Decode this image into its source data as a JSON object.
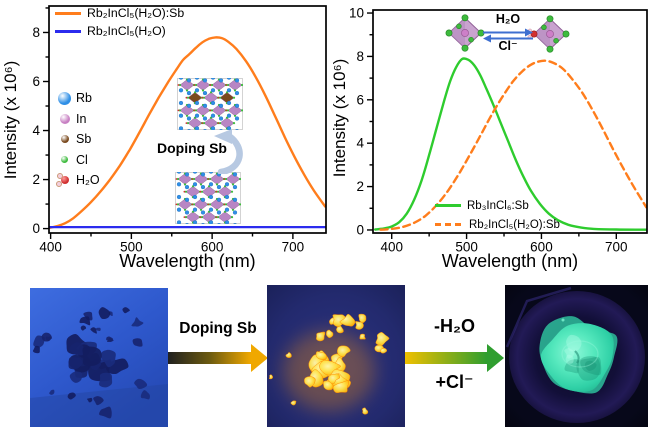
{
  "chart_data": [
    {
      "type": "line",
      "panel": "left",
      "title": "",
      "xlabel": "Wavelength (nm)",
      "ylabel": "Intensity (x 10⁶)",
      "xlim": [
        398,
        741
      ],
      "ylim": [
        -0.18,
        9.08
      ],
      "xticks": [
        400,
        500,
        600,
        700
      ],
      "xticks_minor": [
        450,
        550,
        650
      ],
      "yticks": [
        0,
        2,
        4,
        6,
        8
      ],
      "yticks_minor": [
        1,
        3,
        5,
        7,
        9
      ],
      "grid": false,
      "legend_position": "top-left",
      "series": [
        {
          "name": "Rb₂InCl₅(H₂O):Sb",
          "color": "#ff7d1c",
          "line": "solid",
          "width": 2.4,
          "x": [
            398,
            408,
            418,
            428,
            438,
            450,
            462,
            474,
            486,
            498,
            510,
            522,
            534,
            546,
            556,
            564,
            572,
            580,
            588,
            596,
            604,
            612,
            620,
            630,
            642,
            654,
            666,
            678,
            690,
            702,
            714,
            726,
            740
          ],
          "y": [
            0.03,
            0.1,
            0.22,
            0.42,
            0.7,
            1.08,
            1.52,
            2.02,
            2.58,
            3.22,
            3.92,
            4.65,
            5.35,
            6.0,
            6.5,
            6.88,
            7.12,
            7.38,
            7.6,
            7.74,
            7.8,
            7.77,
            7.62,
            7.33,
            6.83,
            6.18,
            5.42,
            4.58,
            3.73,
            2.93,
            2.2,
            1.55,
            0.9
          ]
        },
        {
          "name": "Rb₂InCl₅(H₂O)",
          "color": "#2b2bee",
          "line": "solid",
          "width": 2.2,
          "x": [
            398,
            741
          ],
          "y": [
            0.06,
            0.06
          ]
        }
      ],
      "atom_legend": [
        {
          "label": "Rb",
          "color": "#2f8fe6"
        },
        {
          "label": "In",
          "color": "#c77fc2"
        },
        {
          "label": "Sb",
          "color": "#7a4a1e"
        },
        {
          "label": "Cl",
          "color": "#3dbb3d"
        },
        {
          "label": "H₂O",
          "color": "#d03030"
        }
      ],
      "inset_text": "Doping Sb"
    },
    {
      "type": "line",
      "panel": "right",
      "title": "",
      "xlabel": "Wavelength (nm)",
      "ylabel": "Intensity (x 10⁶)",
      "xlim": [
        375,
        741
      ],
      "ylim": [
        -0.14,
        10.14
      ],
      "xticks": [
        400,
        500,
        600,
        700
      ],
      "xticks_minor": [
        450,
        550,
        650
      ],
      "yticks": [
        0,
        2,
        4,
        6,
        8,
        10
      ],
      "yticks_minor": [
        1,
        3,
        5,
        7,
        9
      ],
      "grid": false,
      "legend_position": "bottom-center",
      "series": [
        {
          "name": "Rb₃InCl₆:Sb",
          "color": "#2ecc2e",
          "line": "solid",
          "width": 2.4,
          "x": [
            378,
            390,
            400,
            410,
            420,
            430,
            440,
            450,
            460,
            470,
            478,
            486,
            494,
            502,
            510,
            518,
            526,
            536,
            546,
            556,
            566,
            576,
            586,
            598,
            610,
            622,
            636,
            652,
            670,
            700,
            740
          ],
          "y": [
            0.02,
            0.07,
            0.16,
            0.36,
            0.75,
            1.4,
            2.3,
            3.45,
            4.7,
            5.95,
            6.85,
            7.5,
            7.88,
            7.85,
            7.6,
            7.15,
            6.55,
            5.75,
            4.9,
            4.05,
            3.2,
            2.45,
            1.8,
            1.2,
            0.75,
            0.45,
            0.24,
            0.12,
            0.05,
            0.02,
            0.01
          ]
        },
        {
          "name": "Rb₂InCl₅(H₂O):Sb",
          "color": "#ff7d1c",
          "line": "dashed",
          "width": 2.4,
          "x": [
            385,
            400,
            415,
            430,
            445,
            460,
            475,
            490,
            505,
            520,
            535,
            550,
            562,
            574,
            586,
            596,
            606,
            616,
            628,
            640,
            654,
            668,
            682,
            696,
            710,
            724,
            740
          ],
          "y": [
            0.01,
            0.05,
            0.14,
            0.33,
            0.65,
            1.15,
            1.8,
            2.6,
            3.5,
            4.45,
            5.4,
            6.25,
            6.85,
            7.3,
            7.62,
            7.76,
            7.8,
            7.7,
            7.45,
            7.0,
            6.35,
            5.55,
            4.65,
            3.7,
            2.8,
            1.95,
            1.05
          ]
        }
      ],
      "inset_reaction": {
        "forward": "H₂O",
        "reverse": "Cl⁻"
      }
    }
  ],
  "bottom_row": {
    "arrow1_label": "Doping Sb",
    "arrow2_label_top": "-H₂O",
    "arrow2_label_bottom": "+Cl⁻"
  },
  "colors": {
    "axis": "#000000",
    "inset_octahedron_fill": "#c9a3cf",
    "inset_octahedron_edge": "#8f5f96",
    "inset_in_atom": "#cd7fc8",
    "inset_cl_atom": "#3dbb3d",
    "inset_h2o_atom": "#d23030",
    "inset_arrow_blue": "#3e6fd0",
    "doping_arrow_steel": "#b7c9e2",
    "crystal_pink": "#b886c4",
    "crystal_brown": "#7a4a1e",
    "crystal_blue": "#2f8fe6",
    "crystal_green": "#3dbb3d",
    "crystal_red": "#d03030",
    "arrow1_from": "#202020",
    "arrow1_to": "#f0a800",
    "arrow2_from": "#f0c000",
    "arrow2_to": "#2f9e2f",
    "photo1_bg_top": "#3e6de0",
    "photo1_bg_bottom": "#2549b4",
    "photo1_crystal": "#17246e",
    "photo2_bg": "#232a6e",
    "photo2_crystal_core": "#fff6ac",
    "photo2_crystal_edge": "#ff9a00",
    "photo3_bg": "#07081a",
    "photo3_dish": "#221a56",
    "photo3_powder": "#3fdcb0"
  }
}
